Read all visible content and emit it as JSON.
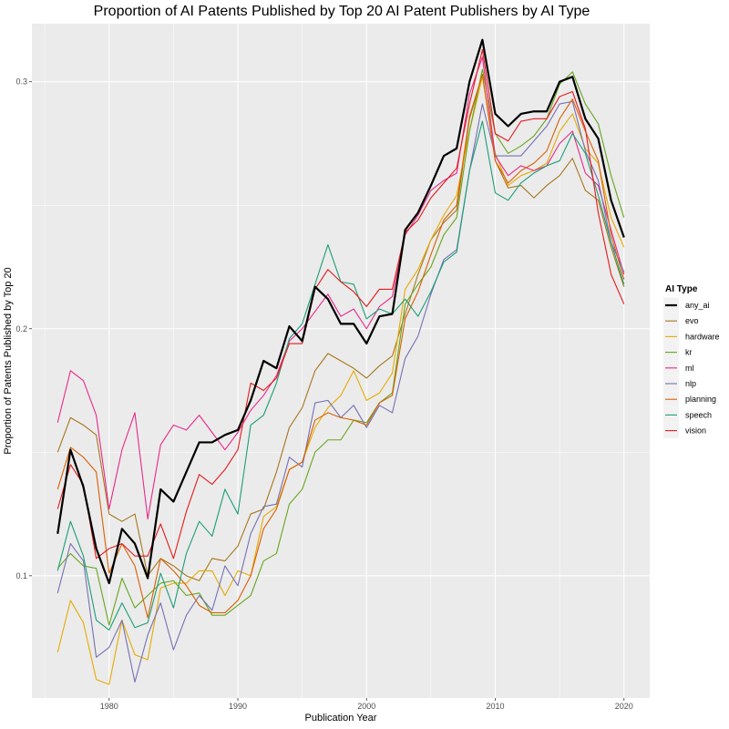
{
  "chart_data": {
    "type": "line",
    "title": "Proportion of AI Patents Published by Top 20 AI Patent Publishers by AI Type",
    "xlabel": "Publication Year",
    "ylabel": "Proportion of Patents Published by Top 20",
    "xlim": [
      1974,
      2022
    ],
    "ylim": [
      0.0505,
      0.3235
    ],
    "xticks": [
      1980,
      1990,
      2000,
      2010,
      2020
    ],
    "xtick_labels": [
      "1980",
      "1990",
      "2000",
      "2010",
      "2020"
    ],
    "yticks": [
      0.1,
      0.2,
      0.3
    ],
    "ytick_labels": [
      "0.1",
      "0.2",
      "0.3"
    ],
    "grid": true,
    "legend": {
      "title": "AI Type",
      "position": "right"
    },
    "x": [
      1976,
      1977,
      1978,
      1979,
      1980,
      1981,
      1982,
      1983,
      1984,
      1985,
      1986,
      1987,
      1988,
      1989,
      1990,
      1991,
      1992,
      1993,
      1994,
      1995,
      1996,
      1997,
      1998,
      1999,
      2000,
      2001,
      2002,
      2003,
      2004,
      2005,
      2006,
      2007,
      2008,
      2009,
      2010,
      2011,
      2012,
      2013,
      2014,
      2015,
      2016,
      2017,
      2018,
      2019,
      2020
    ],
    "series": [
      {
        "name": "any_ai",
        "color": "#000000",
        "width": 2.2,
        "values": [
          0.117,
          0.151,
          0.136,
          0.111,
          0.097,
          0.119,
          0.113,
          0.099,
          0.135,
          0.13,
          0.142,
          0.154,
          0.154,
          0.157,
          0.159,
          0.171,
          0.187,
          0.184,
          0.201,
          0.195,
          0.217,
          0.212,
          0.202,
          0.202,
          0.194,
          0.205,
          0.206,
          0.24,
          0.247,
          0.258,
          0.27,
          0.273,
          0.3,
          0.317,
          0.287,
          0.282,
          0.287,
          0.288,
          0.288,
          0.3,
          0.302,
          0.285,
          0.277,
          0.252,
          0.237
        ]
      },
      {
        "name": "evo",
        "color": "#a6761d",
        "width": 1.1,
        "values": [
          0.15,
          0.164,
          0.161,
          0.157,
          0.125,
          0.122,
          0.125,
          0.1,
          0.107,
          0.104,
          0.1,
          0.098,
          0.107,
          0.106,
          0.112,
          0.125,
          0.127,
          0.142,
          0.16,
          0.168,
          0.183,
          0.19,
          0.187,
          0.184,
          0.18,
          0.185,
          0.189,
          0.206,
          0.222,
          0.236,
          0.243,
          0.248,
          0.285,
          0.303,
          0.268,
          0.257,
          0.258,
          0.253,
          0.258,
          0.262,
          0.269,
          0.256,
          0.252,
          0.233,
          0.217
        ]
      },
      {
        "name": "hardware",
        "color": "#e6ab02",
        "width": 1.1,
        "values": [
          0.069,
          0.09,
          0.081,
          0.058,
          0.056,
          0.082,
          0.068,
          0.066,
          0.095,
          0.097,
          0.097,
          0.102,
          0.102,
          0.092,
          0.102,
          0.1,
          0.124,
          0.128,
          0.143,
          0.146,
          0.16,
          0.168,
          0.173,
          0.183,
          0.171,
          0.174,
          0.182,
          0.216,
          0.224,
          0.236,
          0.246,
          0.254,
          0.28,
          0.302,
          0.271,
          0.258,
          0.262,
          0.264,
          0.267,
          0.28,
          0.287,
          0.273,
          0.267,
          0.245,
          0.233
        ]
      },
      {
        "name": "kr",
        "color": "#66a61e",
        "width": 1.1,
        "values": [
          0.103,
          0.109,
          0.104,
          0.103,
          0.08,
          0.099,
          0.087,
          0.092,
          0.097,
          0.098,
          0.092,
          0.093,
          0.084,
          0.084,
          0.088,
          0.092,
          0.106,
          0.109,
          0.129,
          0.135,
          0.15,
          0.155,
          0.155,
          0.163,
          0.162,
          0.17,
          0.174,
          0.21,
          0.218,
          0.225,
          0.238,
          0.245,
          0.28,
          0.305,
          0.279,
          0.271,
          0.274,
          0.278,
          0.285,
          0.299,
          0.304,
          0.291,
          0.283,
          0.262,
          0.245
        ]
      },
      {
        "name": "ml",
        "color": "#e7298a",
        "width": 1.1,
        "values": [
          0.162,
          0.183,
          0.179,
          0.165,
          0.127,
          0.151,
          0.166,
          0.123,
          0.153,
          0.161,
          0.159,
          0.165,
          0.158,
          0.151,
          0.158,
          0.167,
          0.173,
          0.181,
          0.195,
          0.2,
          0.207,
          0.214,
          0.205,
          0.208,
          0.2,
          0.209,
          0.213,
          0.238,
          0.246,
          0.256,
          0.26,
          0.263,
          0.295,
          0.31,
          0.27,
          0.262,
          0.266,
          0.264,
          0.266,
          0.275,
          0.28,
          0.263,
          0.258,
          0.24,
          0.222
        ]
      },
      {
        "name": "nlp",
        "color": "#7570b3",
        "width": 1.1,
        "values": [
          0.093,
          0.113,
          0.106,
          0.067,
          0.071,
          0.082,
          0.057,
          0.076,
          0.089,
          0.07,
          0.084,
          0.092,
          0.086,
          0.104,
          0.096,
          0.117,
          0.128,
          0.129,
          0.148,
          0.144,
          0.17,
          0.171,
          0.164,
          0.169,
          0.16,
          0.169,
          0.166,
          0.188,
          0.197,
          0.214,
          0.228,
          0.232,
          0.264,
          0.291,
          0.27,
          0.27,
          0.27,
          0.276,
          0.282,
          0.291,
          0.292,
          0.272,
          0.26,
          0.235,
          0.223
        ]
      },
      {
        "name": "planning",
        "color": "#d95f02",
        "width": 1.1,
        "values": [
          0.135,
          0.152,
          0.148,
          0.142,
          0.101,
          0.113,
          0.104,
          0.083,
          0.107,
          0.102,
          0.096,
          0.088,
          0.085,
          0.085,
          0.09,
          0.1,
          0.119,
          0.127,
          0.143,
          0.146,
          0.163,
          0.166,
          0.164,
          0.163,
          0.161,
          0.17,
          0.173,
          0.204,
          0.215,
          0.23,
          0.244,
          0.25,
          0.286,
          0.303,
          0.268,
          0.259,
          0.264,
          0.267,
          0.272,
          0.285,
          0.293,
          0.28,
          0.268,
          0.238,
          0.22
        ]
      },
      {
        "name": "speech",
        "color": "#1b9e77",
        "width": 1.1,
        "values": [
          0.102,
          0.122,
          0.108,
          0.082,
          0.078,
          0.089,
          0.079,
          0.081,
          0.101,
          0.087,
          0.109,
          0.122,
          0.116,
          0.135,
          0.125,
          0.161,
          0.165,
          0.178,
          0.196,
          0.202,
          0.218,
          0.234,
          0.219,
          0.218,
          0.204,
          0.208,
          0.206,
          0.212,
          0.205,
          0.215,
          0.227,
          0.231,
          0.264,
          0.284,
          0.255,
          0.252,
          0.259,
          0.263,
          0.266,
          0.268,
          0.279,
          0.271,
          0.254,
          0.235,
          0.218
        ]
      },
      {
        "name": "vision",
        "color": "#e41a1c",
        "width": 1.1,
        "values": [
          0.127,
          0.145,
          0.137,
          0.107,
          0.111,
          0.113,
          0.108,
          0.108,
          0.121,
          0.107,
          0.126,
          0.141,
          0.137,
          0.143,
          0.151,
          0.178,
          0.175,
          0.18,
          0.194,
          0.194,
          0.216,
          0.224,
          0.219,
          0.215,
          0.209,
          0.216,
          0.216,
          0.239,
          0.244,
          0.253,
          0.259,
          0.265,
          0.291,
          0.313,
          0.279,
          0.276,
          0.284,
          0.285,
          0.285,
          0.294,
          0.296,
          0.281,
          0.247,
          0.222,
          0.21
        ]
      }
    ]
  }
}
